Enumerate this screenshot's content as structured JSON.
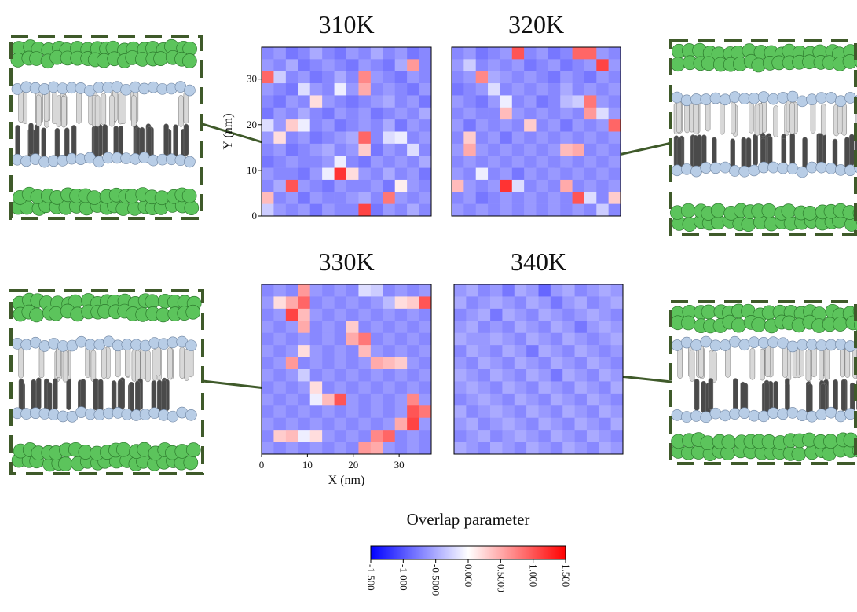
{
  "chart_data": [
    {
      "type": "heatmap",
      "title": "310K",
      "ylabel": "Y (nm)",
      "xlim": [
        0,
        37
      ],
      "ylim": [
        0,
        37
      ],
      "yticks": [
        0,
        10,
        20,
        30
      ],
      "values": [
        [
          -0.7,
          -0.6,
          -0.8,
          -0.7,
          -0.5,
          -0.7,
          -0.8,
          -0.6,
          -0.7,
          -0.5,
          -0.7,
          -0.6,
          -0.8,
          -0.7
        ],
        [
          -0.6,
          -0.7,
          -0.5,
          -0.8,
          -0.7,
          -0.6,
          -0.7,
          -0.8,
          -0.6,
          -0.7,
          -0.8,
          -0.5,
          0.6,
          -0.7
        ],
        [
          0.9,
          -0.3,
          -0.7,
          -0.6,
          -0.8,
          -0.7,
          -0.5,
          -0.7,
          0.7,
          -0.6,
          -0.7,
          -0.8,
          -0.6,
          -0.7
        ],
        [
          -0.6,
          -0.7,
          -0.8,
          -0.2,
          -0.6,
          -0.7,
          -0.1,
          -0.6,
          0.5,
          -0.7,
          -0.6,
          -0.7,
          -0.8,
          -0.6
        ],
        [
          -0.7,
          -0.8,
          -0.6,
          -0.7,
          0.2,
          -0.6,
          -0.7,
          -0.8,
          -0.7,
          -0.6,
          -0.5,
          -0.7,
          -0.6,
          -0.8
        ],
        [
          -0.8,
          -0.6,
          -0.7,
          -0.5,
          -0.7,
          -0.8,
          -0.6,
          -0.7,
          -0.6,
          -0.8,
          -0.7,
          -0.6,
          -0.7,
          -0.5
        ],
        [
          -0.2,
          -0.6,
          0.3,
          -0.1,
          -0.7,
          -0.6,
          -0.8,
          -0.7,
          -0.6,
          -0.7,
          -0.5,
          -0.8,
          -0.6,
          -0.7
        ],
        [
          -0.6,
          0.2,
          -0.7,
          -0.6,
          -0.8,
          -0.7,
          -0.6,
          -0.5,
          0.9,
          -0.7,
          -0.2,
          -0.1,
          -0.7,
          -0.6
        ],
        [
          -0.7,
          -0.6,
          -0.8,
          -0.7,
          -0.6,
          -0.5,
          -0.7,
          -0.6,
          0.3,
          -0.8,
          -0.6,
          -0.7,
          -0.2,
          -0.7
        ],
        [
          -0.8,
          -0.7,
          -0.6,
          -0.7,
          -0.7,
          -0.6,
          -0.1,
          -0.7,
          -0.8,
          -0.6,
          -0.7,
          -0.6,
          -0.7,
          -0.5
        ],
        [
          -0.6,
          -0.7,
          -0.7,
          -0.8,
          -0.6,
          -0.1,
          1.2,
          0.2,
          -0.6,
          -0.7,
          -0.5,
          -0.7,
          -0.6,
          -0.8
        ],
        [
          -0.7,
          -0.5,
          1.0,
          -0.6,
          -0.7,
          -0.8,
          -0.6,
          -0.7,
          -0.7,
          -0.6,
          -0.8,
          0.1,
          -0.6,
          -0.7
        ],
        [
          0.4,
          -0.7,
          -0.6,
          -0.8,
          -0.6,
          -0.7,
          -0.7,
          -0.6,
          -0.5,
          -0.7,
          0.8,
          -0.6,
          -0.7,
          -0.6
        ],
        [
          -0.3,
          -0.6,
          -0.7,
          -0.6,
          -0.8,
          -0.6,
          -0.7,
          -0.7,
          1.1,
          -0.8,
          -0.6,
          -0.7,
          -0.5,
          -0.7
        ]
      ]
    },
    {
      "type": "heatmap",
      "title": "320K",
      "xlim": [
        0,
        37
      ],
      "ylim": [
        0,
        37
      ],
      "values": [
        [
          -0.7,
          -0.6,
          -0.8,
          -0.7,
          -0.6,
          1.0,
          -0.7,
          -0.6,
          -0.8,
          -0.7,
          0.9,
          0.9,
          -0.6,
          -0.7
        ],
        [
          -0.6,
          -0.3,
          -0.7,
          -0.6,
          -0.7,
          -0.6,
          -0.8,
          -0.7,
          -0.6,
          -0.8,
          -0.7,
          -0.6,
          1.1,
          -0.6
        ],
        [
          -0.7,
          -0.6,
          0.7,
          -0.5,
          -0.6,
          -0.7,
          -0.6,
          -0.7,
          -0.8,
          -0.6,
          -0.7,
          -0.8,
          -0.6,
          -0.7
        ],
        [
          -0.8,
          -0.7,
          -0.6,
          -0.2,
          -0.7,
          -0.6,
          -0.7,
          -0.6,
          -0.7,
          -0.5,
          -0.7,
          -0.6,
          -0.7,
          -0.6
        ],
        [
          -0.6,
          -0.7,
          -0.8,
          -0.6,
          -0.1,
          -0.7,
          -0.6,
          -0.8,
          -0.7,
          -0.4,
          -0.3,
          0.8,
          -0.6,
          -0.7
        ],
        [
          -0.7,
          -0.6,
          -0.7,
          -0.7,
          0.4,
          -0.6,
          -0.7,
          -0.6,
          -0.7,
          -0.6,
          -0.7,
          0.6,
          -0.2,
          -0.6
        ],
        [
          -0.6,
          -0.8,
          -0.6,
          -0.7,
          -0.6,
          -0.7,
          0.3,
          -0.7,
          -0.6,
          -0.8,
          -0.6,
          -0.7,
          -0.6,
          0.9
        ],
        [
          -0.7,
          0.3,
          -0.7,
          -0.6,
          -0.8,
          -0.6,
          -0.7,
          -0.6,
          -0.7,
          -0.6,
          -0.7,
          -0.6,
          -0.7,
          -0.6
        ],
        [
          -0.6,
          0.5,
          -0.6,
          -0.7,
          -0.6,
          -0.7,
          -0.6,
          -0.7,
          -0.6,
          0.4,
          0.5,
          -0.7,
          -0.6,
          -0.7
        ],
        [
          -0.7,
          -0.6,
          -0.7,
          -0.6,
          -0.7,
          -0.6,
          -0.7,
          -0.6,
          -0.7,
          -0.6,
          -0.7,
          -0.6,
          -0.7,
          -0.6
        ],
        [
          -0.6,
          -0.7,
          -0.1,
          -0.7,
          -0.6,
          -0.8,
          -0.6,
          -0.7,
          -0.6,
          -0.7,
          -0.6,
          -0.7,
          -0.6,
          -0.7
        ],
        [
          0.4,
          -0.6,
          -0.7,
          -0.6,
          1.2,
          -0.2,
          -0.7,
          -0.6,
          -0.7,
          0.5,
          -0.7,
          -0.6,
          -0.7,
          -0.6
        ],
        [
          -0.7,
          -0.6,
          -0.8,
          -0.7,
          -0.6,
          -0.7,
          -0.6,
          -0.7,
          -0.6,
          -0.7,
          1.0,
          -0.2,
          -0.7,
          0.3
        ],
        [
          -0.6,
          -0.7,
          -0.6,
          -0.7,
          -0.6,
          -0.7,
          -0.6,
          -0.7,
          -0.6,
          -0.7,
          -0.6,
          -0.7,
          -0.3,
          -0.7
        ]
      ]
    },
    {
      "type": "heatmap",
      "title": "330K",
      "xlabel": "X (nm)",
      "xlim": [
        0,
        37
      ],
      "ylim": [
        0,
        37
      ],
      "xticks": [
        0,
        10,
        20,
        30
      ],
      "values": [
        [
          -0.7,
          -0.6,
          -0.7,
          0.6,
          -0.6,
          -0.7,
          -0.6,
          -0.7,
          -0.2,
          -0.3,
          -0.7,
          -0.6,
          -0.7,
          -0.6
        ],
        [
          -0.6,
          0.2,
          0.5,
          0.9,
          -0.7,
          -0.6,
          -0.7,
          -0.6,
          -0.7,
          -0.6,
          -0.4,
          0.2,
          0.3,
          1.0
        ],
        [
          -0.7,
          -0.6,
          1.1,
          0.4,
          -0.6,
          -0.7,
          -0.6,
          -0.7,
          -0.6,
          -0.7,
          -0.6,
          -0.7,
          -0.6,
          -0.7
        ],
        [
          -0.6,
          -0.7,
          -0.6,
          0.5,
          -0.7,
          -0.6,
          -0.7,
          0.3,
          -0.7,
          -0.6,
          -0.7,
          -0.6,
          -0.7,
          -0.6
        ],
        [
          -0.7,
          -0.6,
          -0.7,
          -0.6,
          -0.7,
          -0.6,
          -0.7,
          0.5,
          0.8,
          -0.7,
          -0.6,
          -0.7,
          -0.6,
          -0.7
        ],
        [
          -0.6,
          -0.7,
          -0.6,
          0.2,
          -0.6,
          -0.7,
          -0.6,
          -0.7,
          0.4,
          -0.6,
          -0.7,
          -0.6,
          -0.7,
          -0.6
        ],
        [
          -0.7,
          -0.6,
          0.6,
          -0.7,
          -0.6,
          -0.7,
          -0.6,
          -0.7,
          -0.6,
          0.5,
          0.4,
          0.3,
          -0.6,
          -0.7
        ],
        [
          -0.6,
          -0.7,
          -0.6,
          -0.3,
          -0.7,
          -0.6,
          -0.7,
          -0.6,
          -0.7,
          -0.6,
          -0.7,
          -0.6,
          -0.7,
          -0.6
        ],
        [
          -0.7,
          -0.6,
          -0.7,
          -0.6,
          0.2,
          -0.7,
          -0.6,
          -0.7,
          -0.6,
          -0.7,
          -0.6,
          -0.7,
          -0.6,
          -0.7
        ],
        [
          -0.6,
          -0.7,
          -0.6,
          -0.7,
          -0.1,
          0.4,
          1.0,
          -0.6,
          -0.7,
          -0.6,
          -0.7,
          -0.6,
          0.7,
          -0.6
        ],
        [
          -0.7,
          -0.6,
          -0.7,
          -0.6,
          -0.7,
          -0.6,
          -0.7,
          -0.6,
          -0.7,
          -0.6,
          -0.7,
          -0.6,
          1.0,
          0.8
        ],
        [
          -0.6,
          -0.7,
          -0.6,
          -0.7,
          -0.6,
          -0.7,
          -0.6,
          -0.7,
          -0.6,
          -0.7,
          -0.6,
          0.5,
          1.1,
          -0.6
        ],
        [
          -0.7,
          0.3,
          0.4,
          -0.1,
          0.2,
          -0.6,
          -0.7,
          -0.6,
          -0.7,
          0.7,
          0.9,
          -0.7,
          -0.6,
          -0.7
        ],
        [
          -0.6,
          -0.7,
          -0.6,
          -0.7,
          -0.6,
          -0.7,
          -0.6,
          -0.7,
          0.6,
          0.5,
          -0.6,
          -0.7,
          -0.6,
          -0.7
        ]
      ]
    },
    {
      "type": "heatmap",
      "title": "340K",
      "xlim": [
        0,
        37
      ],
      "ylim": [
        0,
        37
      ],
      "values": [
        [
          -0.6,
          -0.5,
          -0.7,
          -0.6,
          -0.8,
          -0.5,
          -0.6,
          -0.9,
          -0.6,
          -0.5,
          -0.7,
          -0.6,
          -0.5,
          -0.6
        ],
        [
          -0.5,
          -0.7,
          -0.6,
          -0.5,
          -0.6,
          -0.7,
          -0.5,
          -0.6,
          -0.8,
          -0.6,
          -0.5,
          -0.7,
          -0.6,
          -0.5
        ],
        [
          -0.7,
          -0.6,
          -0.5,
          -0.8,
          -0.5,
          -0.6,
          -0.7,
          -0.5,
          -0.6,
          -0.7,
          -0.6,
          -0.5,
          -0.6,
          -0.7
        ],
        [
          -0.6,
          -0.5,
          -0.7,
          -0.6,
          -0.7,
          -0.5,
          -0.6,
          -0.7,
          -0.5,
          -0.6,
          -0.8,
          -0.6,
          -0.5,
          -0.6
        ],
        [
          -0.5,
          -0.6,
          -0.6,
          -0.5,
          -0.6,
          -0.7,
          -0.5,
          -0.6,
          -0.7,
          -0.5,
          -0.6,
          -0.7,
          -0.6,
          -0.5
        ],
        [
          -0.7,
          -0.5,
          -0.6,
          -0.7,
          -0.5,
          -0.6,
          -0.8,
          -0.5,
          -0.6,
          -0.7,
          -0.5,
          -0.6,
          -0.7,
          -0.6
        ],
        [
          -0.6,
          -0.7,
          -0.5,
          -0.6,
          -0.7,
          -0.5,
          -0.6,
          -0.7,
          -0.5,
          -0.6,
          -0.7,
          -0.5,
          -0.6,
          -0.7
        ],
        [
          -0.5,
          -0.6,
          -0.7,
          -0.5,
          -0.6,
          -0.7,
          -0.5,
          -0.6,
          -0.8,
          -0.5,
          -0.6,
          -0.7,
          -0.5,
          -0.6
        ],
        [
          -0.6,
          -0.5,
          -0.6,
          -0.7,
          -0.5,
          -0.6,
          -0.7,
          -0.5,
          -0.6,
          -0.7,
          -0.5,
          -0.6,
          -0.7,
          -0.5
        ],
        [
          -0.7,
          -0.6,
          -0.5,
          -0.6,
          -0.7,
          -0.5,
          -0.6,
          -0.7,
          -0.5,
          -0.6,
          -0.7,
          -0.5,
          -0.6,
          -0.7
        ],
        [
          -0.5,
          -0.7,
          -0.6,
          -0.5,
          -0.6,
          -0.7,
          -0.5,
          -0.6,
          -0.7,
          -0.5,
          -0.6,
          -0.7,
          -0.5,
          -0.6
        ],
        [
          -0.6,
          -0.5,
          -0.7,
          -0.6,
          -0.5,
          -0.6,
          -0.7,
          -0.5,
          -0.6,
          -0.7,
          -0.5,
          -0.6,
          -0.7,
          -0.5
        ],
        [
          -0.7,
          -0.6,
          -0.5,
          -0.7,
          -0.6,
          -0.5,
          -0.6,
          -0.7,
          -0.5,
          -0.6,
          -0.7,
          -0.5,
          -0.6,
          -0.7
        ],
        [
          -0.5,
          -0.6,
          -0.7,
          -0.5,
          -0.6,
          -0.7,
          -0.5,
          -0.6,
          -0.7,
          -0.5,
          -0.6,
          -0.7,
          -0.5,
          -0.6
        ]
      ]
    },
    {
      "type": "colorbar",
      "title": "Overlap parameter",
      "clim": [
        -1.5,
        1.5
      ],
      "colormap": [
        "#0000ff",
        "#ffffff",
        "#ff0000"
      ],
      "ticks": [
        {
          "value": -1.5,
          "label": "-1.500"
        },
        {
          "value": -1,
          "label": "-1.000"
        },
        {
          "value": -0.5,
          "label": "-0.5000"
        },
        {
          "value": 0,
          "label": "0.000"
        },
        {
          "value": 0.5,
          "label": "0.5000"
        },
        {
          "value": 1,
          "label": "1.000"
        },
        {
          "value": 1.5,
          "label": "1.500"
        }
      ]
    }
  ]
}
